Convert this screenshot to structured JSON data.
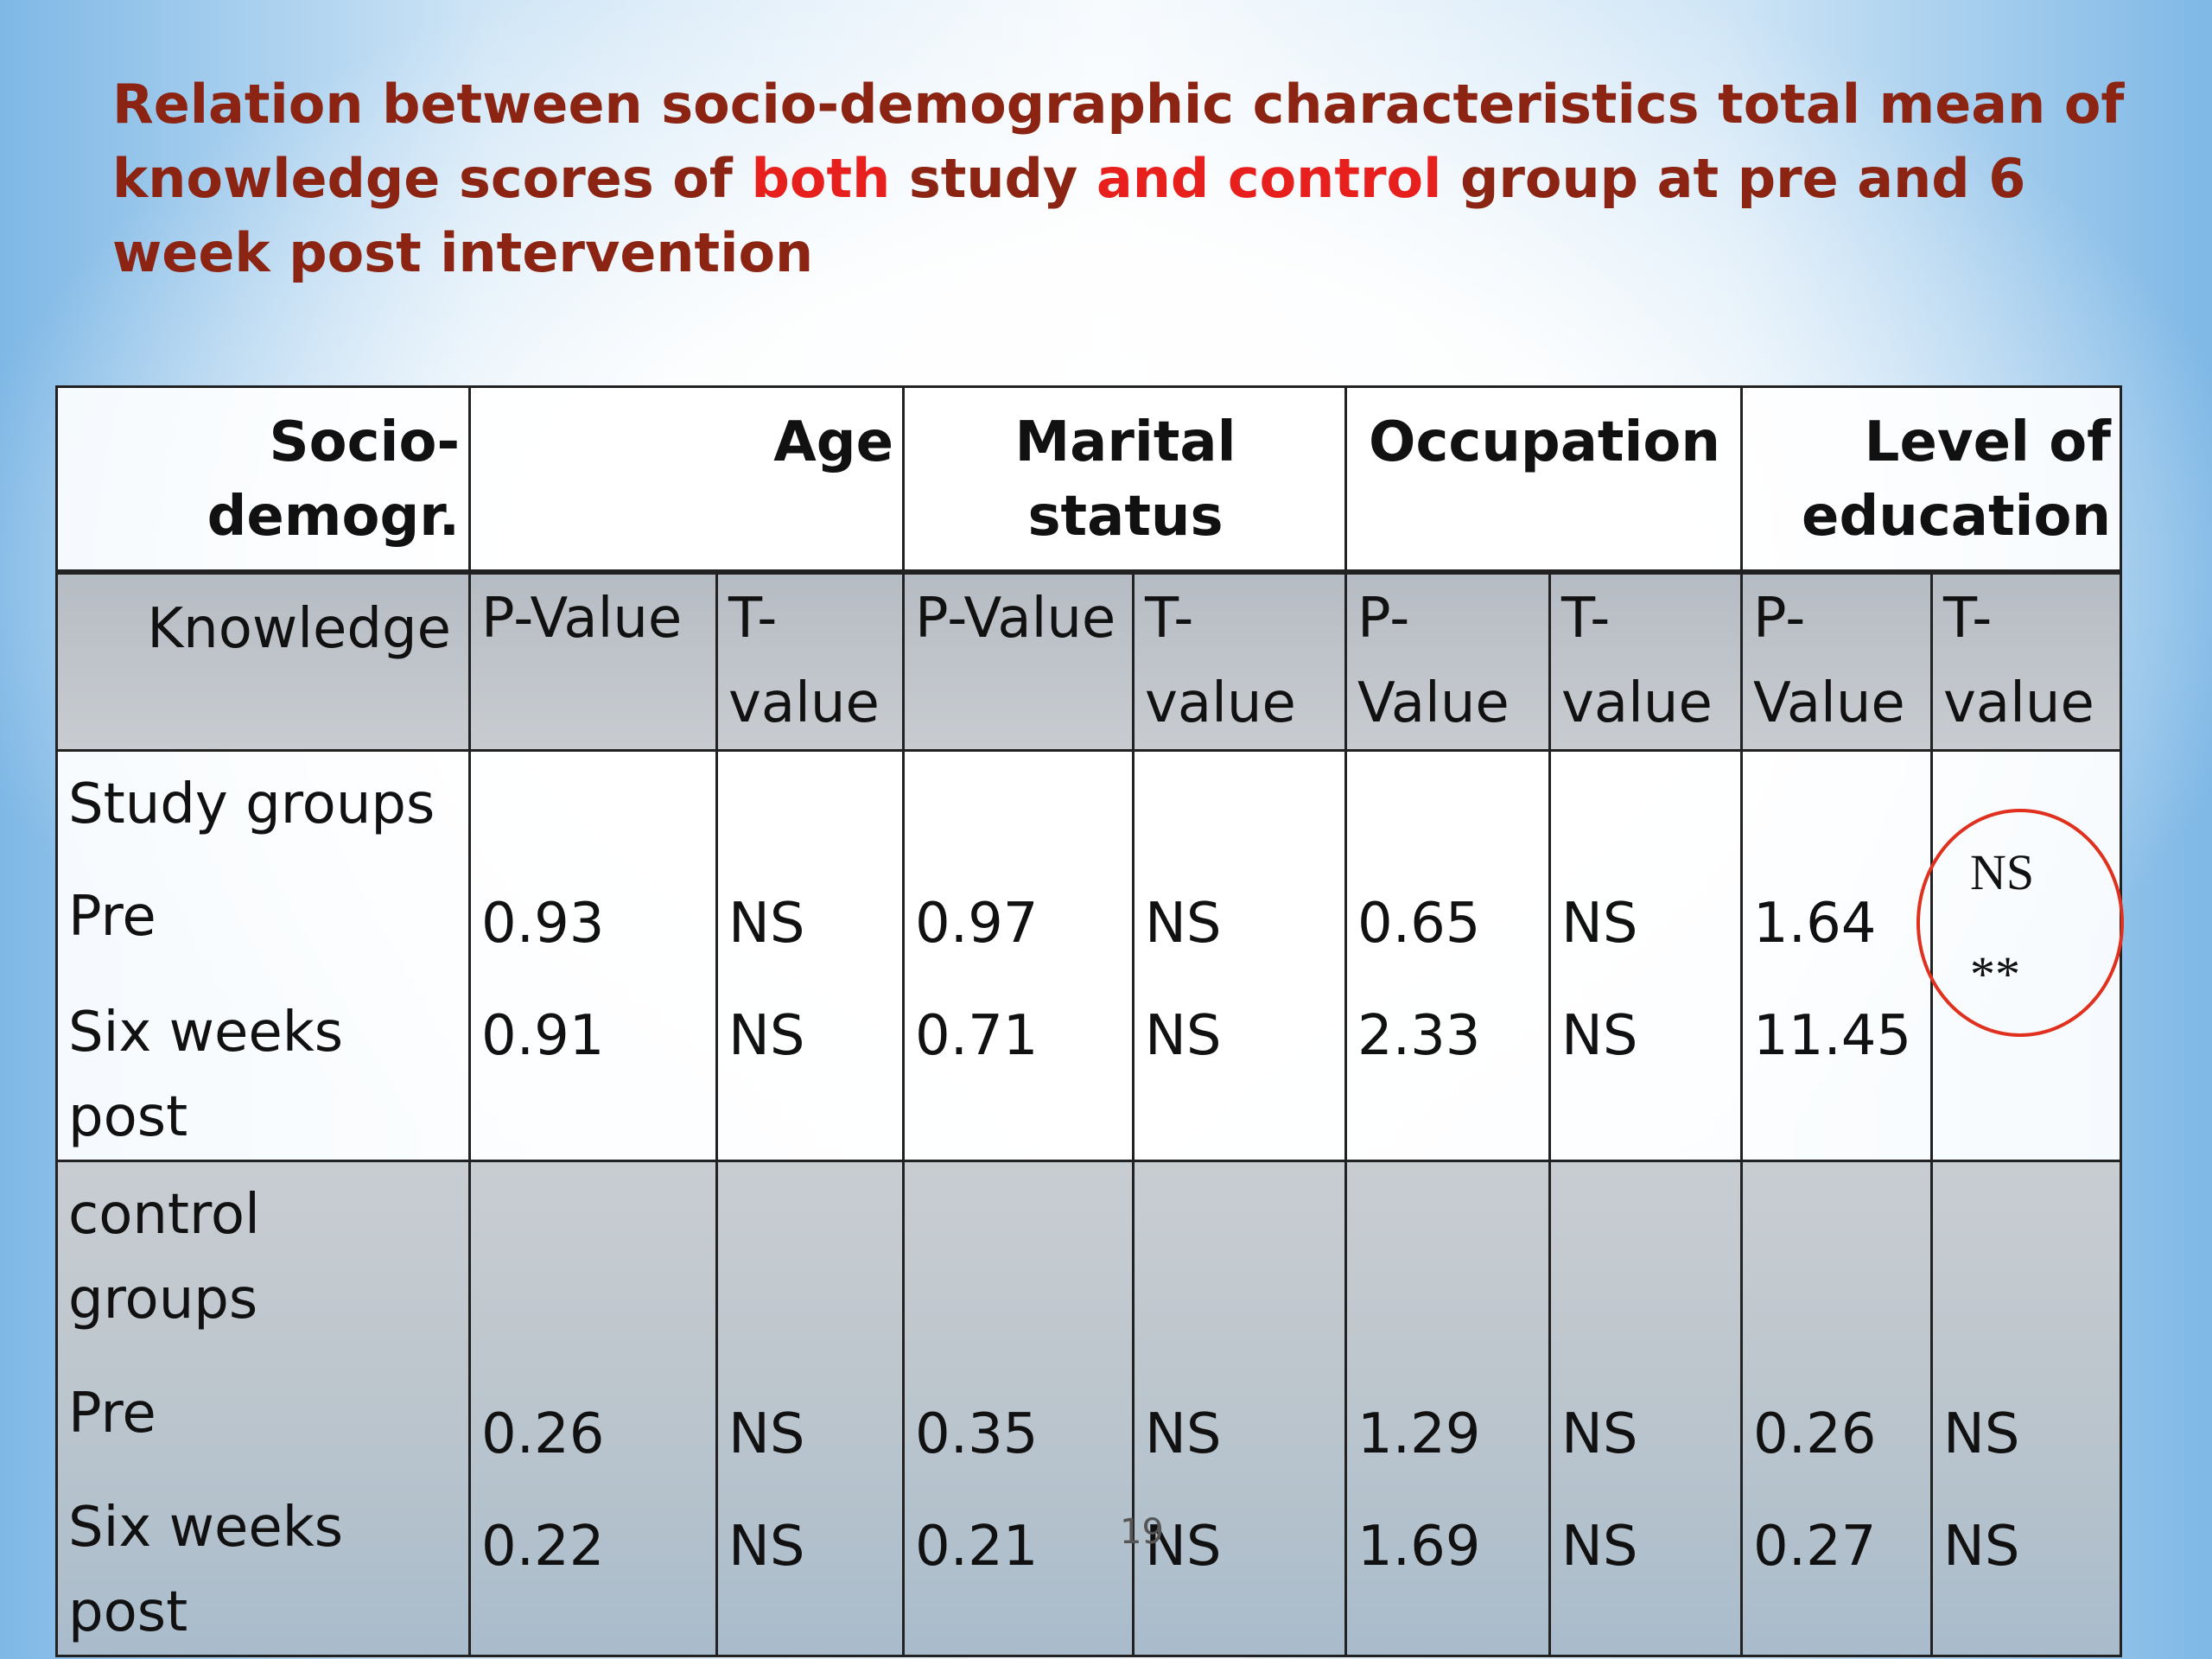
{
  "title": {
    "part1": "Relation between socio-demographic characteristics total mean of knowledge scores of ",
    "part2": "both",
    "part3": " study ",
    "part4": "and control",
    "part5": " group at pre and 6 week post intervention"
  },
  "table": {
    "header_row": {
      "col0": "Socio-demogr.",
      "age": "Age",
      "marital": "Marital status",
      "occupation": "Occupation",
      "education": "Level of education"
    },
    "sub_row": {
      "knowledge": "Knowledge",
      "p_value": "P-Value",
      "t_value": "T-value"
    },
    "study": {
      "label": "Study groups",
      "pre_label": "Pre",
      "post_label": "Six  weeks post",
      "pre": [
        "0.93",
        "NS",
        "0.97",
        "NS",
        "0.65",
        "NS",
        "1.64",
        "NS"
      ],
      "post": [
        "0.91",
        "NS",
        "0.71",
        "NS",
        "2.33",
        "NS",
        "11.45",
        "**"
      ]
    },
    "control": {
      "label": "control groups",
      "pre_label": "Pre",
      "post_label": "Six  weeks post",
      "pre": [
        "0.26",
        "NS",
        "0.35",
        "NS",
        "1.29",
        "NS",
        "0.26",
        "NS"
      ],
      "post": [
        "0.22",
        "NS",
        "0.21",
        "NS",
        "1.69",
        "NS",
        "0.27",
        "NS"
      ]
    }
  },
  "slide_number": "19",
  "colors": {
    "title": "#8b2412",
    "highlight": "#e8201d",
    "circle": "#e0301e"
  }
}
